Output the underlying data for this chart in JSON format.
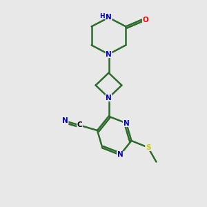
{
  "background_color": "#e8e8e8",
  "atom_color_N": "#0000cc",
  "atom_color_O": "#ff0000",
  "atom_color_S": "#cccc00",
  "bond_color": "#2d6b2d",
  "bond_lw": 1.8,
  "figsize": [
    3.0,
    3.0
  ],
  "dpi": 100,
  "xlim": [
    0,
    10
  ],
  "ylim": [
    0,
    10
  ],
  "label_fontsize": 7.5,
  "label_fontsize_small": 6.5
}
